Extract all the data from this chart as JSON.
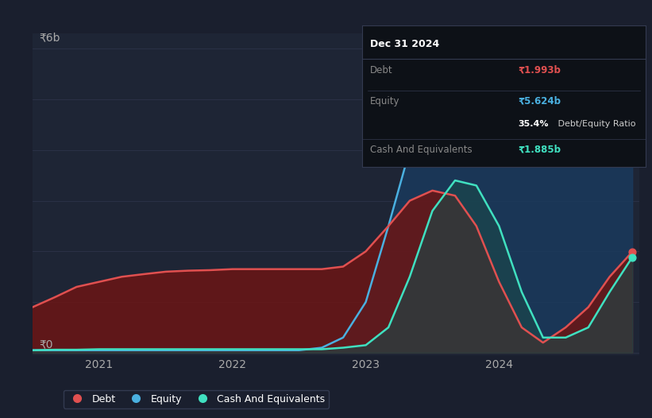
{
  "bg_color": "#1a1f2e",
  "plot_bg_color": "#1e2535",
  "grid_color": "#2a3045",
  "y_label": "₹6b",
  "y_zero": "₹0",
  "x_ticks": [
    2021,
    2022,
    2023,
    2024
  ],
  "debt_color": "#e05050",
  "equity_color": "#4ab0e0",
  "cash_color": "#40e0c0",
  "debt_fill": "#6b1515",
  "equity_fill": "#1a3a5c",
  "cash_fill": "#1a4a4a",
  "tooltip_bg": "#0d1117",
  "tooltip_border": "#333a50",
  "tooltip_title": "Dec 31 2024",
  "tooltip_debt_label": "Debt",
  "tooltip_debt_value": "₹1.993b",
  "tooltip_equity_label": "Equity",
  "tooltip_equity_value": "₹5.624b",
  "tooltip_ratio": "35.4% Debt/Equity Ratio",
  "tooltip_ratio_bold": "35.4%",
  "tooltip_ratio_rest": " Debt/Equity Ratio",
  "tooltip_cash_label": "Cash And Equivalents",
  "tooltip_cash_value": "₹1.885b",
  "legend_items": [
    "Debt",
    "Equity",
    "Cash And Equivalents"
  ],
  "t": [
    2020.5,
    2020.67,
    2020.83,
    2021.0,
    2021.17,
    2021.33,
    2021.5,
    2021.67,
    2021.83,
    2022.0,
    2022.17,
    2022.33,
    2022.5,
    2022.67,
    2022.83,
    2023.0,
    2023.17,
    2023.33,
    2023.5,
    2023.67,
    2023.83,
    2024.0,
    2024.17,
    2024.33,
    2024.5,
    2024.67,
    2024.83,
    2025.0
  ],
  "debt": [
    0.9,
    1.1,
    1.3,
    1.4,
    1.5,
    1.55,
    1.6,
    1.62,
    1.63,
    1.65,
    1.65,
    1.65,
    1.65,
    1.65,
    1.7,
    2.0,
    2.5,
    3.0,
    3.2,
    3.1,
    2.5,
    1.4,
    0.5,
    0.2,
    0.5,
    0.9,
    1.5,
    1.993
  ],
  "equity": [
    0.05,
    0.05,
    0.05,
    0.05,
    0.05,
    0.05,
    0.05,
    0.05,
    0.05,
    0.05,
    0.05,
    0.05,
    0.05,
    0.1,
    0.3,
    1.0,
    2.5,
    4.0,
    5.2,
    5.5,
    5.5,
    5.45,
    5.4,
    5.4,
    5.45,
    5.5,
    5.55,
    5.624
  ],
  "cash": [
    0.05,
    0.06,
    0.06,
    0.07,
    0.07,
    0.07,
    0.07,
    0.07,
    0.07,
    0.07,
    0.07,
    0.07,
    0.07,
    0.07,
    0.1,
    0.15,
    0.5,
    1.5,
    2.8,
    3.4,
    3.3,
    2.5,
    1.2,
    0.3,
    0.3,
    0.5,
    1.2,
    1.885
  ],
  "ymax": 6.0,
  "xmin": 2020.5,
  "xmax": 2025.05
}
